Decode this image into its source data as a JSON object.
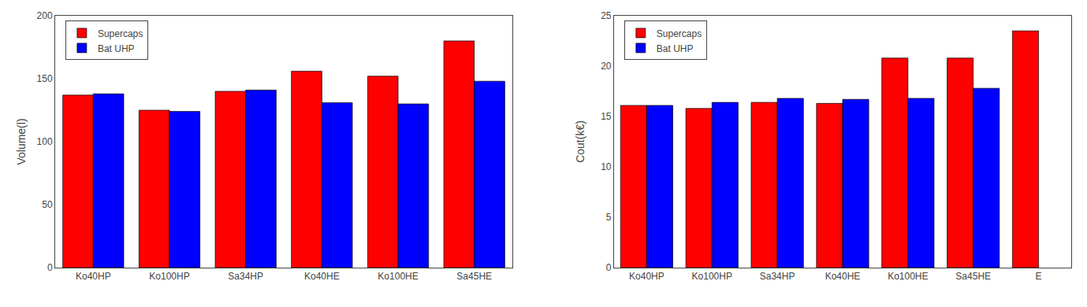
{
  "chart_data": [
    {
      "type": "bar",
      "categories": [
        "Ko40HP",
        "Ko100HP",
        "Sa34HP",
        "Ko40HE",
        "Ko100HE",
        "Sa45HE"
      ],
      "series": [
        {
          "name": "Supercaps",
          "color": "#ff0000",
          "values": [
            137,
            125,
            140,
            156,
            152,
            180
          ]
        },
        {
          "name": "Bat UHP",
          "color": "#0000ff",
          "values": [
            138,
            124,
            141,
            131,
            130,
            148
          ]
        }
      ],
      "ylabel": "Volume(l)",
      "ylim": [
        0,
        200
      ],
      "yticks": [
        0,
        50,
        100,
        150,
        200
      ],
      "legend": "upper left",
      "grid": false
    },
    {
      "type": "bar",
      "categories": [
        "Ko40HP",
        "Ko100HP",
        "Sa34HP",
        "Ko40HE",
        "Ko100HE",
        "Sa45HE",
        "E"
      ],
      "series": [
        {
          "name": "Supercaps",
          "color": "#ff0000",
          "values": [
            16.1,
            15.8,
            16.4,
            16.3,
            20.8,
            20.8,
            23.5
          ]
        },
        {
          "name": "Bat UHP",
          "color": "#0000ff",
          "values": [
            16.1,
            16.4,
            16.8,
            16.7,
            16.8,
            17.8,
            null
          ]
        }
      ],
      "ylabel": "Cout(k€)",
      "ylim": [
        0,
        25
      ],
      "yticks": [
        0,
        5,
        10,
        15,
        20,
        25
      ],
      "legend": "upper left",
      "grid": false
    }
  ]
}
